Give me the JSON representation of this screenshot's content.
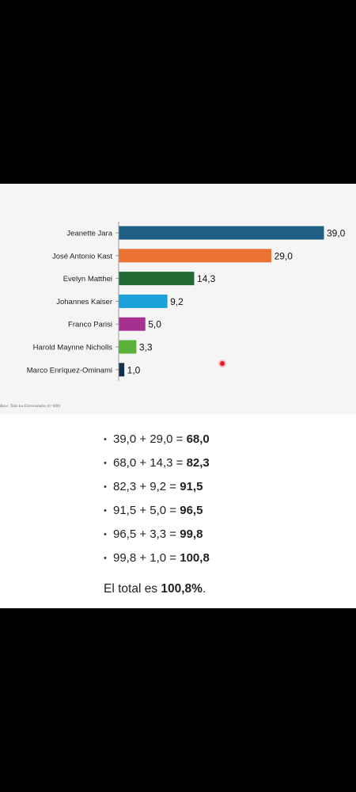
{
  "chart_data": {
    "type": "bar",
    "orientation": "horizontal",
    "categories": [
      "Jeanette Jara",
      "José Antonio Kast",
      "Evelyn Matthei",
      "Johannes Kaiser",
      "Franco Parisi",
      "Harold Maynne Nicholls",
      "Marco Enríquez-Ominami"
    ],
    "values": [
      39.0,
      29.0,
      14.3,
      9.2,
      5.0,
      3.3,
      1.0
    ],
    "value_labels": [
      "39,0",
      "29,0",
      "14,3",
      "9,2",
      "5,0",
      "3,3",
      "1,0"
    ],
    "colors": [
      "#1f5f86",
      "#ea7232",
      "#236b32",
      "#1aa2d8",
      "#a6308f",
      "#5bb23b",
      "#13314e"
    ],
    "xlim": [
      0,
      39.0
    ],
    "grid": false,
    "title": "",
    "xlabel": "",
    "ylabel": ""
  },
  "base_note": "Base: Todo los Entrevistados (n=400)",
  "calculations": [
    {
      "expr": "39,0 + 29,0 = ",
      "result": "68,0"
    },
    {
      "expr": "68,0 + 14,3 = ",
      "result": "82,3"
    },
    {
      "expr": "82,3 + 9,2 = ",
      "result": "91,5"
    },
    {
      "expr": "91,5 + 5,0 = ",
      "result": "96,5"
    },
    {
      "expr": "96,5 + 3,3 = ",
      "result": "99,8"
    },
    {
      "expr": "99,8 + 1,0 = ",
      "result": "100,8"
    }
  ],
  "total": {
    "prefix": "El total es ",
    "value": "100,8%",
    "suffix": "."
  },
  "bullet_char": "•"
}
